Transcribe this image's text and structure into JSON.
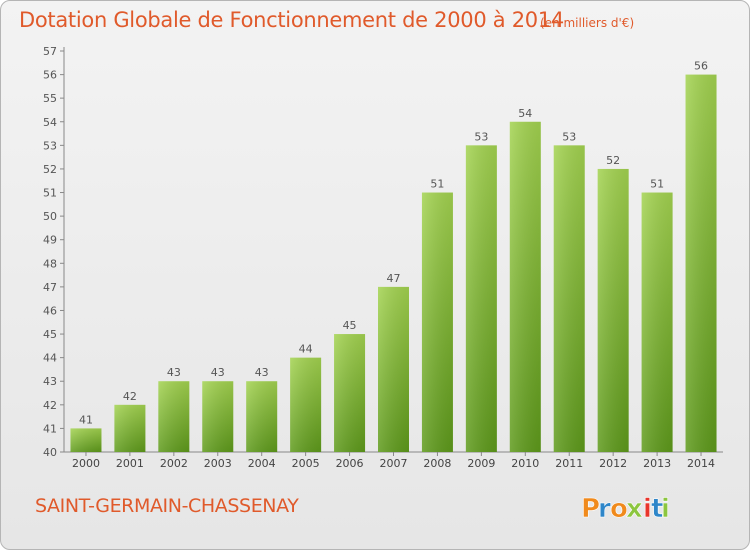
{
  "title": "Dotation Globale de Fonctionnement de 2000 à 2014",
  "unit": "(en milliers d'€)",
  "commune": "SAINT-GERMAIN-CHASSENAY",
  "logo": {
    "text": "Proxiti",
    "letters": [
      "P",
      "r",
      "o",
      "x",
      "i",
      "t",
      "i"
    ],
    "colors": [
      "#f08a1c",
      "#2e86c9",
      "#f08a1c",
      "#8cc63f",
      "#e8352b",
      "#2e86c9",
      "#8cc63f"
    ]
  },
  "colors": {
    "title": "#e05a2b",
    "bar_top": "#9fd04c",
    "bar_bottom": "#5f9c1c",
    "axis": "#555555",
    "grid": "#d0d0d0"
  },
  "chart_data": {
    "type": "bar",
    "title": "Dotation Globale de Fonctionnement de 2000 à 2014",
    "categories": [
      "2000",
      "2001",
      "2002",
      "2003",
      "2004",
      "2005",
      "2006",
      "2007",
      "2008",
      "2009",
      "2010",
      "2011",
      "2012",
      "2013",
      "2014"
    ],
    "values": [
      41,
      42,
      43,
      43,
      43,
      44,
      45,
      47,
      51,
      53,
      54,
      53,
      52,
      51,
      56
    ],
    "ylim": [
      40,
      57
    ],
    "yticks": [
      40,
      41,
      42,
      43,
      44,
      45,
      46,
      47,
      48,
      49,
      50,
      51,
      52,
      53,
      54,
      55,
      56,
      57
    ],
    "grid": false,
    "data_labels": true
  }
}
